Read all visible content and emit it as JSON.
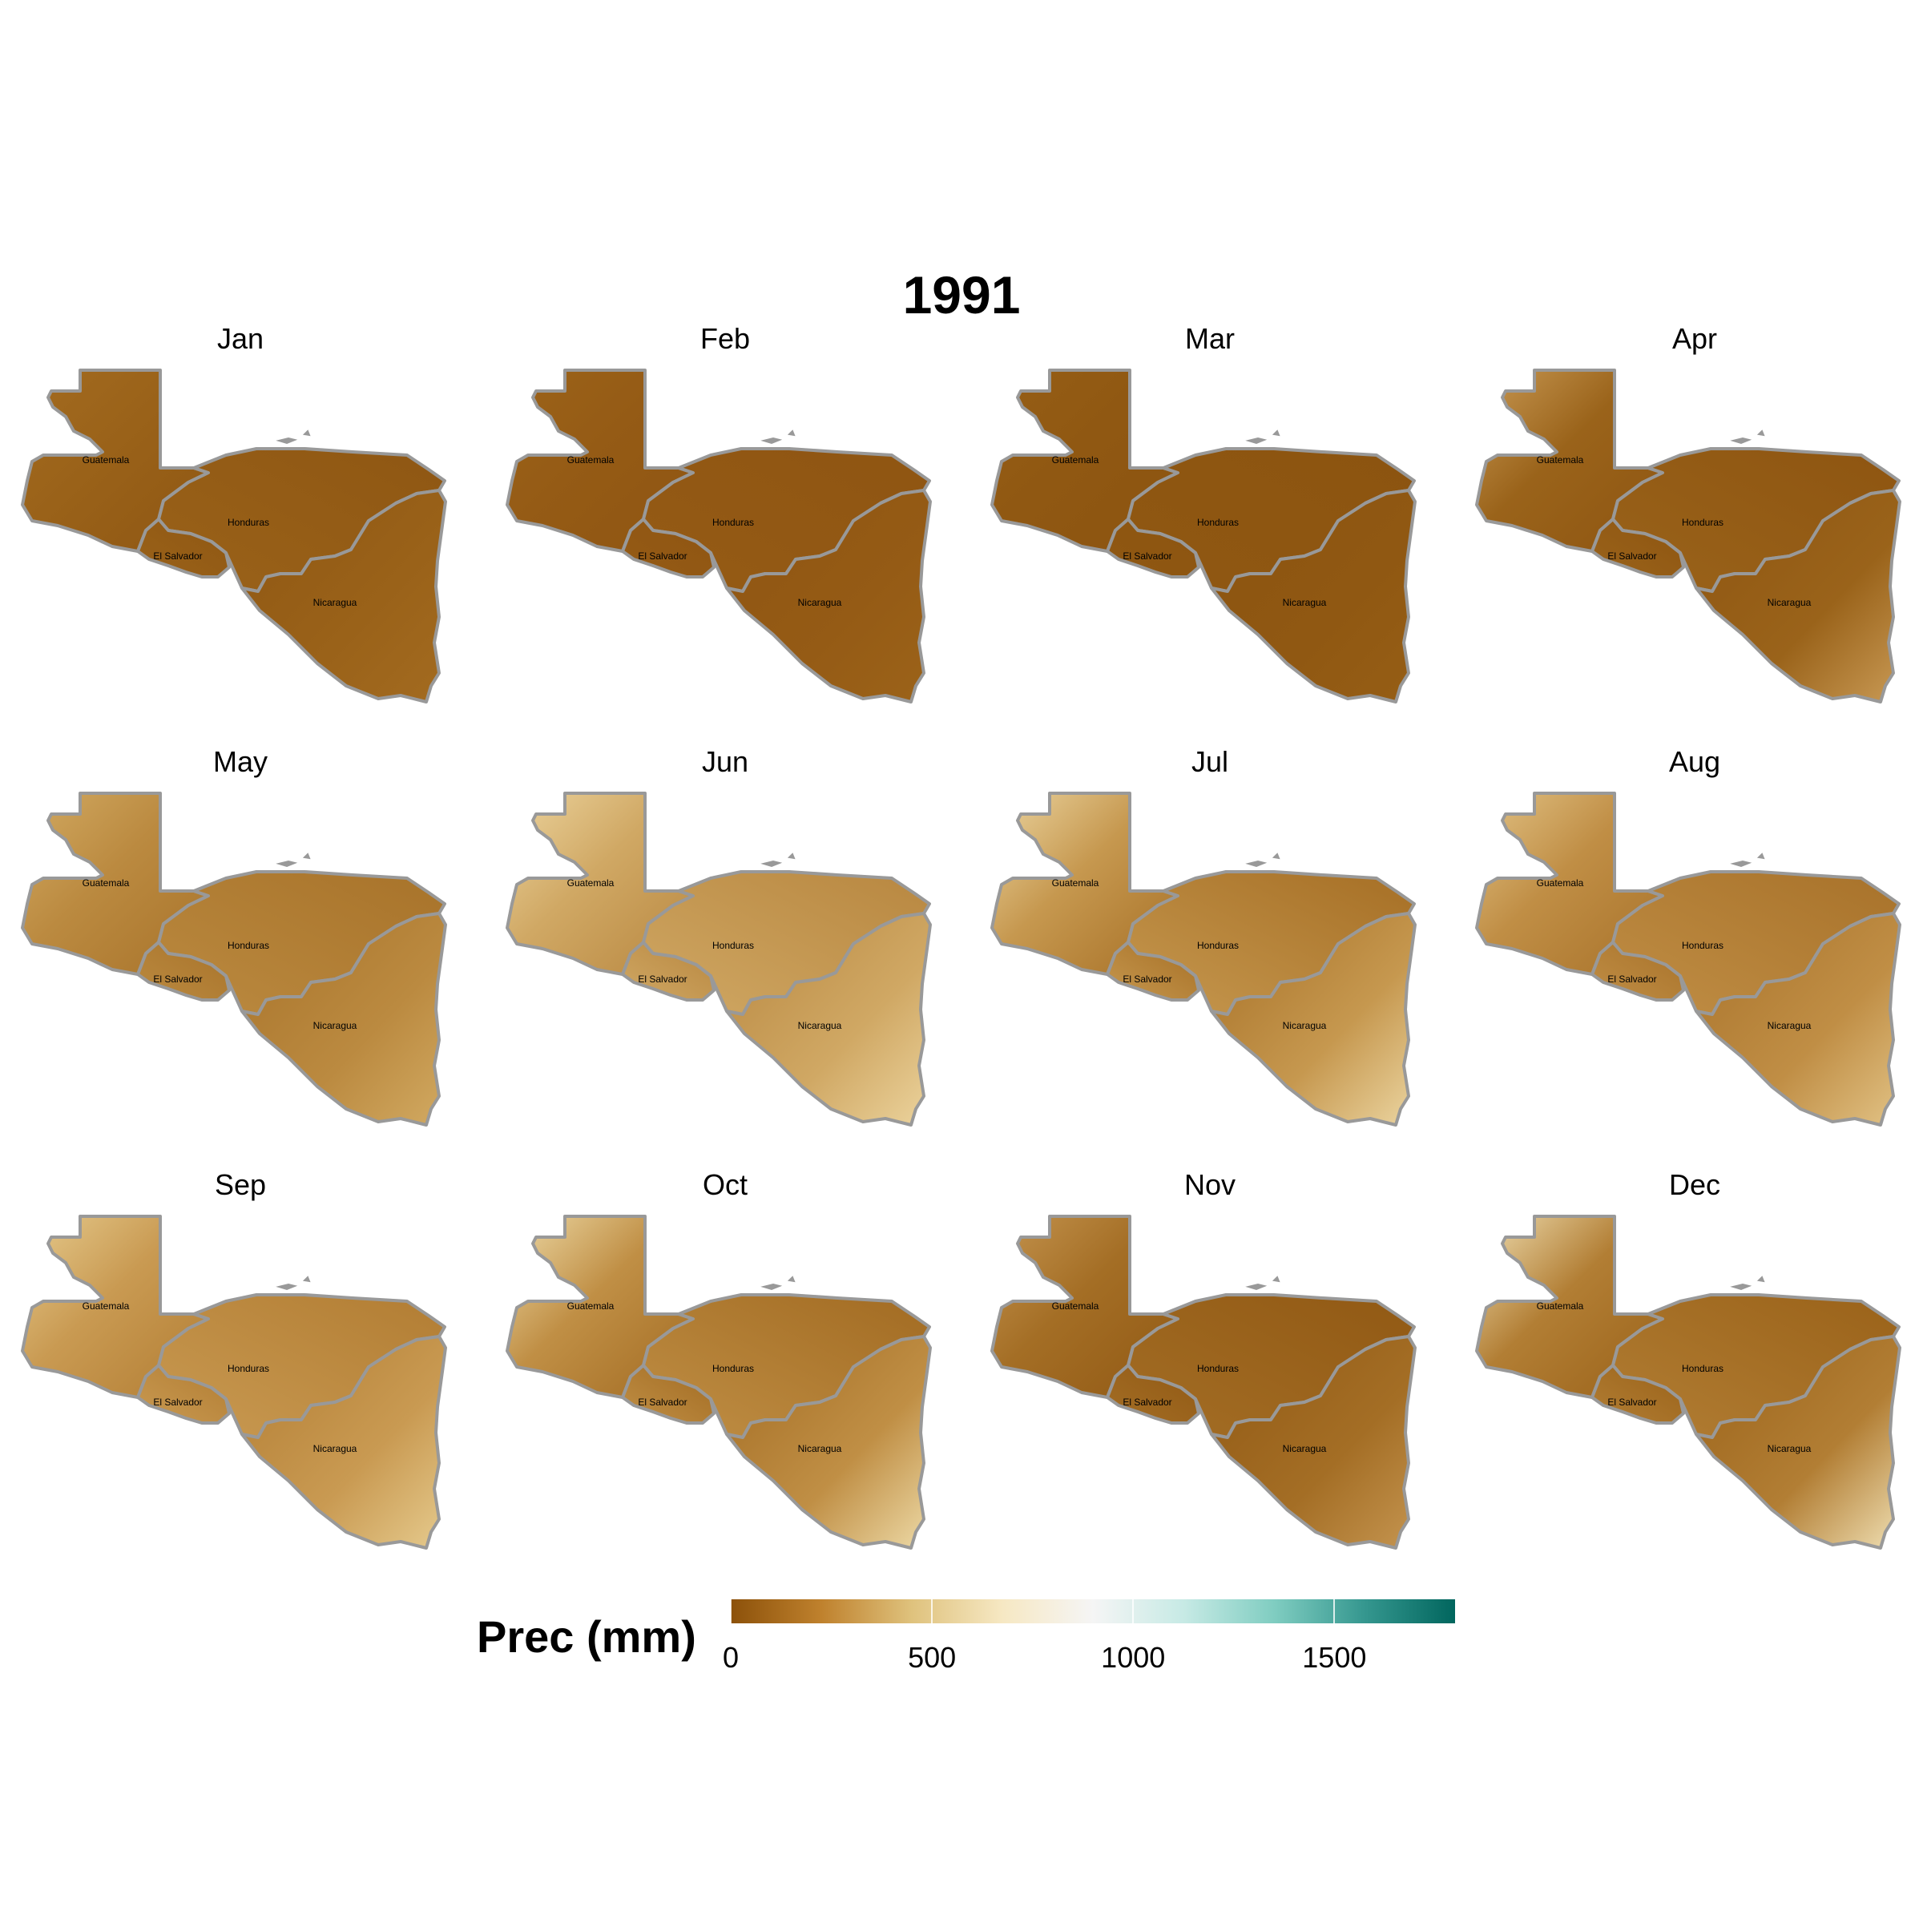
{
  "title": "1991",
  "panels": [
    {
      "month": "Jan",
      "base": "#8f5713",
      "mid": "#9a6219",
      "light": "#a36b20"
    },
    {
      "month": "Feb",
      "base": "#8f5512",
      "mid": "#955b15",
      "light": "#9c6319"
    },
    {
      "month": "Mar",
      "base": "#8c5410",
      "mid": "#905812",
      "light": "#965e15"
    },
    {
      "month": "Apr",
      "base": "#8e5511",
      "mid": "#9a631a",
      "light": "#c99a55"
    },
    {
      "month": "May",
      "base": "#a8732a",
      "mid": "#bb8a40",
      "light": "#d2aa62"
    },
    {
      "month": "Jun",
      "base": "#b88740",
      "mid": "#d0a864",
      "light": "#ecd49e"
    },
    {
      "month": "Jul",
      "base": "#a66f25",
      "mid": "#c6984f",
      "light": "#ecd6a2"
    },
    {
      "month": "Aug",
      "base": "#a8722a",
      "mid": "#c08e45",
      "light": "#e2c386"
    },
    {
      "month": "Sep",
      "base": "#b27d33",
      "mid": "#c99a52",
      "light": "#e6cb8e"
    },
    {
      "month": "Oct",
      "base": "#a26b22",
      "mid": "#c08f45",
      "light": "#eedba8"
    },
    {
      "month": "Nov",
      "base": "#915914",
      "mid": "#a46e25",
      "light": "#c59550"
    },
    {
      "month": "Dec",
      "base": "#9a6219",
      "mid": "#b27e34",
      "light": "#f0e0b4"
    }
  ],
  "countries": [
    "Guatemala",
    "Honduras",
    "El Salvador",
    "Nicaragua"
  ],
  "legend": {
    "title": "Prec (mm)",
    "min": 0,
    "max": 1800,
    "ticks": [
      "0",
      "500",
      "1000",
      "1500"
    ],
    "tick_values": [
      0,
      500,
      1000,
      1500
    ],
    "colors": [
      "#8c510a",
      "#bf812d",
      "#dfc27d",
      "#f6e8c3",
      "#f5f5f5",
      "#c7eae5",
      "#80cdc1",
      "#35978f",
      "#01665e"
    ]
  },
  "border_color": "#999999"
}
